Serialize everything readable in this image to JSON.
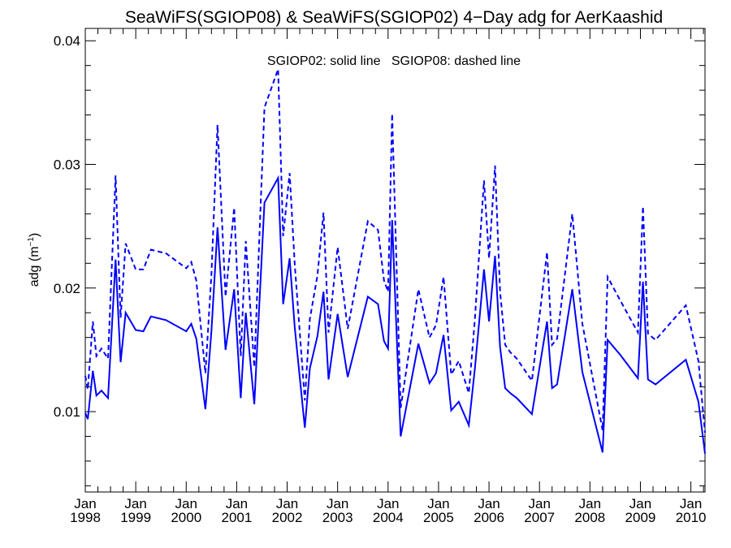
{
  "chart_data": {
    "type": "line",
    "title": "SeaWiFS(SGIOP08) & SeaWiFS(SGIOP02) 4−Day adg for AerKaashid",
    "annotation": "SGIOP02: solid line   SGIOP08: dashed line",
    "ylabel_main": "adg (m",
    "ylabel_sup": "−1",
    "ylabel_close": ")",
    "xlabel": "",
    "xlim": [
      1998.0,
      2010.28
    ],
    "ylim": [
      0.0035,
      0.041
    ],
    "y_ticks": [
      0.01,
      0.02,
      0.03,
      0.04
    ],
    "y_tick_labels": [
      "0.01",
      "0.02",
      "0.03",
      "0.04"
    ],
    "x_ticks": [
      1998,
      1999,
      2000,
      2001,
      2002,
      2003,
      2004,
      2005,
      2006,
      2007,
      2008,
      2009,
      2010
    ],
    "x_tick_month": "Jan",
    "x_tick_years": [
      "1998",
      "1999",
      "2000",
      "2001",
      "2002",
      "2003",
      "2004",
      "2005",
      "2006",
      "2007",
      "2008",
      "2009",
      "2010"
    ],
    "grid": false,
    "color": "#0000ff",
    "series": [
      {
        "name": "SGIOP02",
        "style": "solid",
        "x": [
          1998.0,
          1998.05,
          1998.15,
          1998.22,
          1998.32,
          1998.45,
          1998.6,
          1998.7,
          1998.8,
          1999.0,
          1999.15,
          1999.3,
          1999.6,
          2000.0,
          2000.1,
          2000.2,
          2000.38,
          2000.5,
          2000.62,
          2000.78,
          2000.95,
          2001.08,
          2001.18,
          2001.35,
          2001.55,
          2001.82,
          2001.92,
          2002.05,
          2002.15,
          2002.35,
          2002.45,
          2002.6,
          2002.72,
          2002.82,
          2003.0,
          2003.2,
          2003.6,
          2003.8,
          2003.92,
          2004.0,
          2004.08,
          2004.25,
          2004.6,
          2004.82,
          2004.95,
          2005.1,
          2005.25,
          2005.4,
          2005.6,
          2005.72,
          2005.9,
          2006.0,
          2006.12,
          2006.22,
          2006.32,
          2006.42,
          2006.55,
          2006.85,
          2007.15,
          2007.25,
          2007.35,
          2007.65,
          2007.85,
          2008.25,
          2008.35,
          2008.6,
          2008.95,
          2009.05,
          2009.15,
          2009.3,
          2009.9,
          2010.15,
          2010.28
        ],
        "values": [
          0.0099,
          0.0094,
          0.0133,
          0.0113,
          0.0117,
          0.0111,
          0.0223,
          0.014,
          0.018,
          0.0166,
          0.0165,
          0.0177,
          0.0174,
          0.0165,
          0.0171,
          0.0159,
          0.0102,
          0.0165,
          0.0249,
          0.015,
          0.0199,
          0.0111,
          0.018,
          0.0106,
          0.0269,
          0.0289,
          0.0187,
          0.0224,
          0.0168,
          0.0087,
          0.0135,
          0.0161,
          0.0197,
          0.0126,
          0.0179,
          0.0128,
          0.0193,
          0.0187,
          0.0157,
          0.0151,
          0.0255,
          0.008,
          0.0155,
          0.0123,
          0.0131,
          0.0162,
          0.0101,
          0.0108,
          0.0089,
          0.0135,
          0.0215,
          0.0173,
          0.0226,
          0.0152,
          0.0119,
          0.0115,
          0.0111,
          0.0098,
          0.0173,
          0.0119,
          0.0122,
          0.0199,
          0.0132,
          0.0067,
          0.0158,
          0.0146,
          0.0127,
          0.0205,
          0.0126,
          0.0122,
          0.0142,
          0.0108,
          0.0066
        ]
      },
      {
        "name": "SGIOP08",
        "style": "dashed",
        "x": [
          1998.0,
          1998.05,
          1998.15,
          1998.22,
          1998.32,
          1998.45,
          1998.6,
          1998.7,
          1998.8,
          1999.0,
          1999.15,
          1999.3,
          1999.6,
          2000.0,
          2000.1,
          2000.2,
          2000.38,
          2000.5,
          2000.62,
          2000.78,
          2000.95,
          2001.08,
          2001.18,
          2001.35,
          2001.55,
          2001.82,
          2001.92,
          2002.05,
          2002.15,
          2002.35,
          2002.45,
          2002.6,
          2002.72,
          2002.82,
          2003.0,
          2003.2,
          2003.6,
          2003.8,
          2003.92,
          2004.0,
          2004.08,
          2004.25,
          2004.6,
          2004.82,
          2004.95,
          2005.1,
          2005.25,
          2005.4,
          2005.6,
          2005.72,
          2005.9,
          2006.0,
          2006.12,
          2006.22,
          2006.32,
          2006.42,
          2006.55,
          2006.85,
          2007.15,
          2007.25,
          2007.35,
          2007.65,
          2007.85,
          2008.25,
          2008.35,
          2008.6,
          2008.95,
          2009.05,
          2009.15,
          2009.3,
          2009.9,
          2010.15,
          2010.28
        ],
        "values": [
          0.0129,
          0.0118,
          0.0173,
          0.0145,
          0.0151,
          0.0143,
          0.0291,
          0.0176,
          0.0236,
          0.0215,
          0.0215,
          0.0231,
          0.0228,
          0.0216,
          0.0221,
          0.0206,
          0.0131,
          0.0211,
          0.0332,
          0.0193,
          0.0265,
          0.0145,
          0.0238,
          0.0136,
          0.0346,
          0.0377,
          0.0242,
          0.0293,
          0.0219,
          0.0109,
          0.0175,
          0.021,
          0.0261,
          0.0164,
          0.0233,
          0.0167,
          0.0254,
          0.0247,
          0.0206,
          0.0197,
          0.0341,
          0.0103,
          0.0199,
          0.016,
          0.017,
          0.0209,
          0.013,
          0.0141,
          0.0115,
          0.0175,
          0.0287,
          0.0224,
          0.0299,
          0.0197,
          0.0154,
          0.0148,
          0.0143,
          0.0125,
          0.0229,
          0.0154,
          0.0159,
          0.026,
          0.0171,
          0.0085,
          0.0209,
          0.019,
          0.0164,
          0.0266,
          0.0163,
          0.0158,
          0.0186,
          0.0141,
          0.0083
        ]
      }
    ]
  }
}
